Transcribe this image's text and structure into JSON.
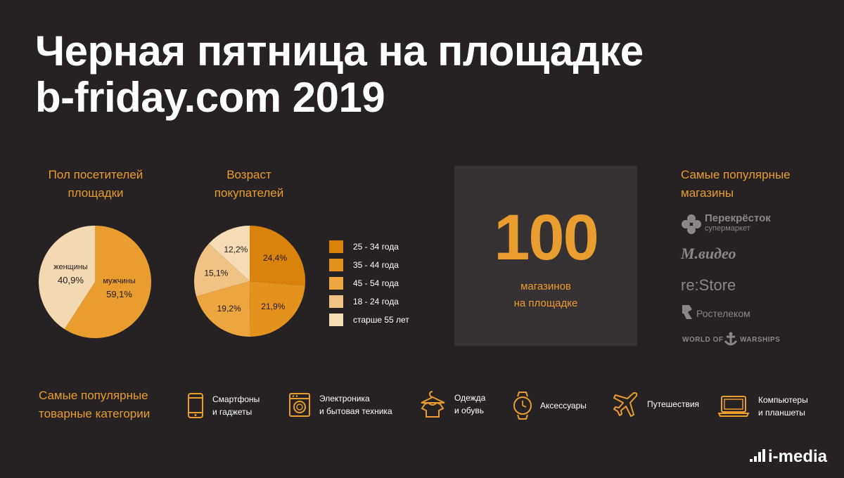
{
  "title": {
    "line1": "Черная пятница на площадке",
    "line2": "b-friday.com 2019"
  },
  "gender_label": {
    "line1": "Пол посетителей",
    "line2": "площадки"
  },
  "age_label": {
    "line1": "Возраст",
    "line2": "покупателей"
  },
  "stores_box": {
    "number": "100",
    "caption_line1": "магазинов",
    "caption_line2": "на площадке"
  },
  "stores": {
    "title_line1": "Самые популярные",
    "title_line2": "магазины",
    "logos": [
      {
        "name": "Перекрёсток",
        "sub": "супермаркет"
      },
      {
        "name": "М.видео"
      },
      {
        "name": "re:Store"
      },
      {
        "name": "Ростелеком"
      },
      {
        "name": "WORLD OF",
        "name2": "WARSHIPS"
      }
    ]
  },
  "categories": {
    "title_line1": "Самые популярные",
    "title_line2": "товарные категории",
    "items": [
      {
        "icon": "smartphone-icon",
        "line1": "Смартфоны",
        "line2": "и гаджеты"
      },
      {
        "icon": "washing-machine-icon",
        "line1": "Электроника",
        "line2": "и бытовая техника"
      },
      {
        "icon": "tshirt-icon",
        "line1": "Одежда",
        "line2": "и обувь"
      },
      {
        "icon": "watch-icon",
        "line1": "Аксессуары",
        "line2": ""
      },
      {
        "icon": "airplane-icon",
        "line1": "Путешествия",
        "line2": ""
      },
      {
        "icon": "laptop-icon",
        "line1": "Компьютеры",
        "line2": "и планшеты"
      }
    ]
  },
  "brand": "i-media",
  "chart_data": [
    {
      "type": "pie",
      "title": "Пол посетителей площадки",
      "slices": [
        {
          "name": "мужчины",
          "label": "59,1%",
          "value": 59.1,
          "color": "#e89d2e"
        },
        {
          "name": "женщины",
          "label": "40,9%",
          "value": 40.9,
          "color": "#f3d9b1"
        }
      ]
    },
    {
      "type": "pie",
      "title": "Возраст покупателей",
      "slices": [
        {
          "name": "25 - 34 года",
          "label": "24,4%",
          "value": 24.4,
          "color": "#d9820c"
        },
        {
          "name": "35 - 44 года",
          "label": "21,9%",
          "value": 21.9,
          "color": "#e3921e"
        },
        {
          "name": "45 - 54 года",
          "label": "19,2%",
          "value": 19.2,
          "color": "#eba640"
        },
        {
          "name": "18 - 24 года",
          "label": "15,1%",
          "value": 15.1,
          "color": "#f0c284"
        },
        {
          "name": "старше 55 лет",
          "label": "12,2%",
          "value": 12.2,
          "color": "#f5dcb5"
        }
      ]
    }
  ]
}
